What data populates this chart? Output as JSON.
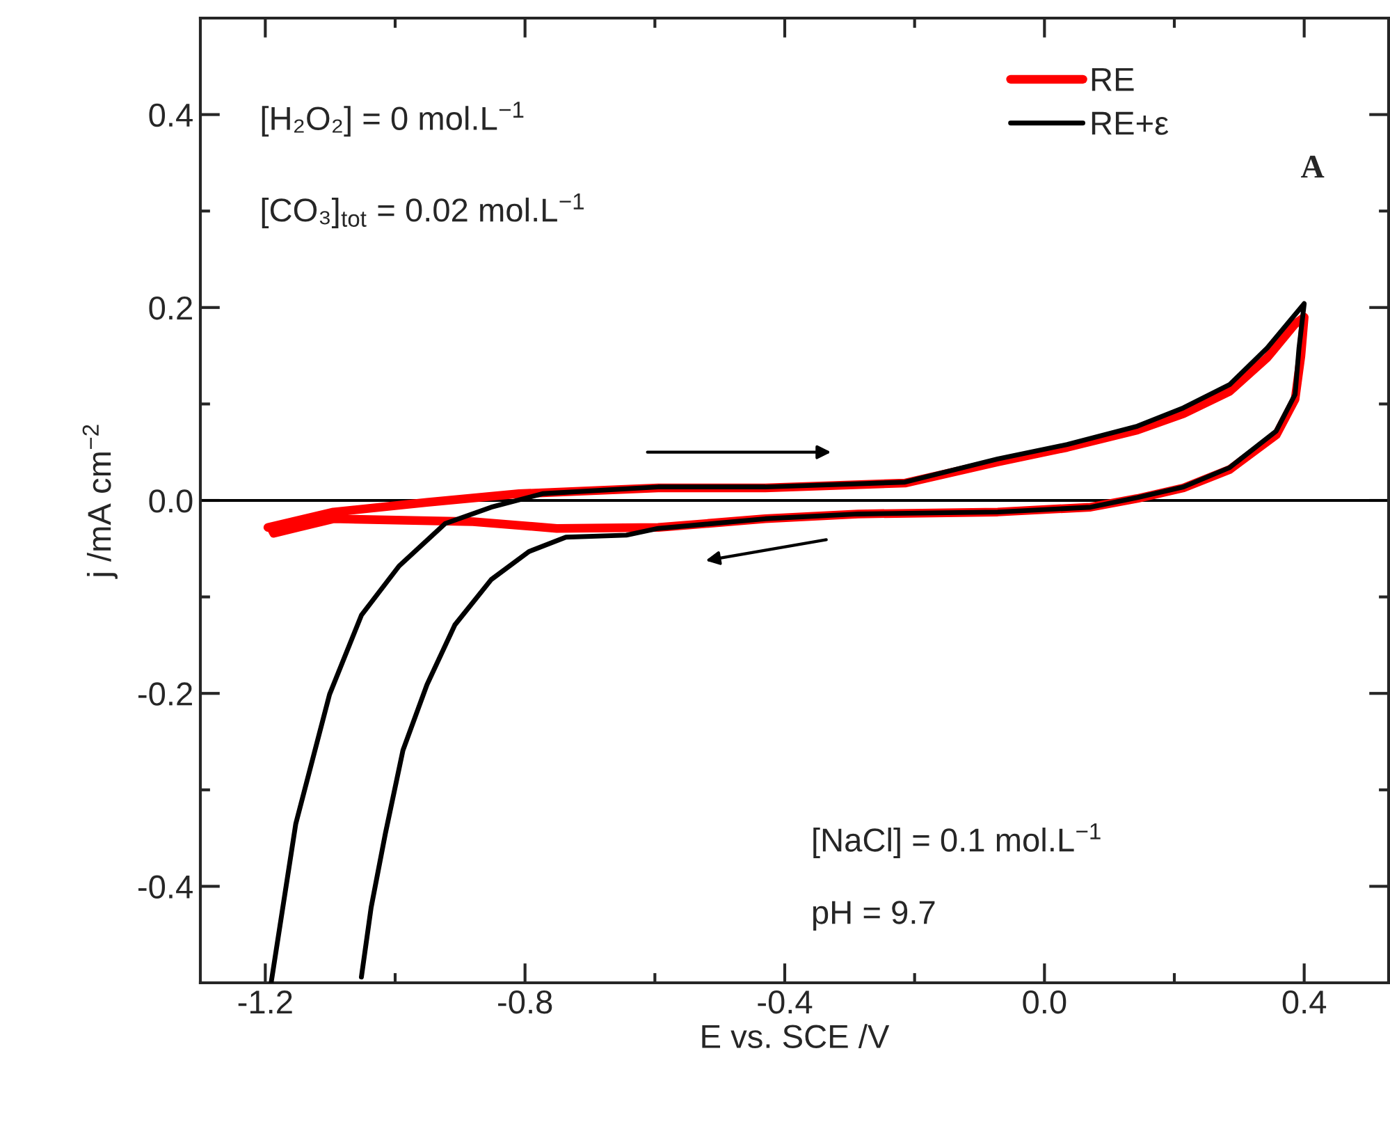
{
  "chart_data": {
    "type": "line",
    "xlabel": "E vs. SCE /V",
    "ylabel": "j /mA cm$^{−2}$",
    "xlim": [
      -1.3,
      0.53
    ],
    "ylim": [
      -0.5,
      0.5
    ],
    "xticks": [
      {
        "value": -1.2,
        "label": "-1.2"
      },
      {
        "value": -1.0,
        "label": null
      },
      {
        "value": -0.8,
        "label": "-0.8"
      },
      {
        "value": -0.6,
        "label": null
      },
      {
        "value": -0.4,
        "label": "-0.4"
      },
      {
        "value": -0.2,
        "label": null
      },
      {
        "value": 0.0,
        "label": "0.0"
      },
      {
        "value": 0.2,
        "label": null
      },
      {
        "value": 0.4,
        "label": "0.4"
      }
    ],
    "yticks": [
      {
        "value": -0.4,
        "label": "-0.4"
      },
      {
        "value": -0.3,
        "label": null
      },
      {
        "value": -0.2,
        "label": "-0.2"
      },
      {
        "value": -0.1,
        "label": null
      },
      {
        "value": 0.0,
        "label": "0.0"
      },
      {
        "value": 0.1,
        "label": null
      },
      {
        "value": 0.2,
        "label": "0.2"
      },
      {
        "value": 0.3,
        "label": null
      },
      {
        "value": 0.4,
        "label": "0.4"
      }
    ],
    "grid": false,
    "legend": "top right",
    "marker": "none",
    "line_style": "solid",
    "ref_lines": [
      {
        "axis": "y",
        "value": 0.0,
        "color": "#000000"
      }
    ],
    "annotations": [
      "[H₂O₂] = 0 mol.L$^{−1}$",
      "[CO₃]$_{tot}$ = 0.02 mol.L$^{−1}$",
      "[NaCl] = 0.1 mol.L$^{−1}$",
      "pH = 9.7",
      "A"
    ],
    "series": [
      {
        "name": "RE",
        "color": "#ff0000",
        "x": [
          -1.196,
          -1.095,
          -0.951,
          -0.809,
          -0.595,
          -0.43,
          -0.215,
          -0.072,
          0.035,
          0.143,
          0.214,
          0.285,
          0.343,
          0.386,
          0.4,
          0.395,
          0.386,
          0.357,
          0.285,
          0.214,
          0.143,
          0.071,
          -0.072,
          -0.287,
          -0.43,
          -0.595,
          -0.751,
          -0.88,
          -1.095,
          -1.187,
          -1.19
        ],
        "values": [
          -0.028,
          -0.012,
          -0.002,
          0.007,
          0.013,
          0.013,
          0.018,
          0.04,
          0.055,
          0.073,
          0.09,
          0.113,
          0.148,
          0.183,
          0.19,
          0.15,
          0.105,
          0.068,
          0.032,
          0.013,
          0.002,
          -0.007,
          -0.012,
          -0.014,
          -0.019,
          -0.028,
          -0.029,
          -0.022,
          -0.019,
          -0.034,
          -0.03
        ]
      },
      {
        "name": "RE+ε",
        "color": "#000000",
        "x": [
          -1.191,
          -1.153,
          -1.101,
          -1.052,
          -0.994,
          -0.923,
          -0.852,
          -0.773,
          -0.595,
          -0.43,
          -0.215,
          -0.072,
          0.035,
          0.143,
          0.214,
          0.285,
          0.343,
          0.4,
          0.392,
          0.386,
          0.357,
          0.285,
          0.214,
          0.143,
          0.071,
          -0.072,
          -0.287,
          -0.43,
          -0.595,
          -0.644,
          -0.737,
          -0.794,
          -0.852,
          -0.908,
          -0.951,
          -0.988,
          -1.015,
          -1.037,
          -1.052
        ],
        "values": [
          -0.5,
          -0.335,
          -0.201,
          -0.119,
          -0.068,
          -0.024,
          -0.007,
          0.007,
          0.014,
          0.014,
          0.019,
          0.043,
          0.058,
          0.077,
          0.096,
          0.12,
          0.158,
          0.204,
          0.158,
          0.11,
          0.072,
          0.034,
          0.014,
          0.003,
          -0.007,
          -0.012,
          -0.014,
          -0.019,
          -0.029,
          -0.036,
          -0.038,
          -0.053,
          -0.082,
          -0.129,
          -0.191,
          -0.259,
          -0.345,
          -0.422,
          -0.494
        ]
      }
    ]
  }
}
